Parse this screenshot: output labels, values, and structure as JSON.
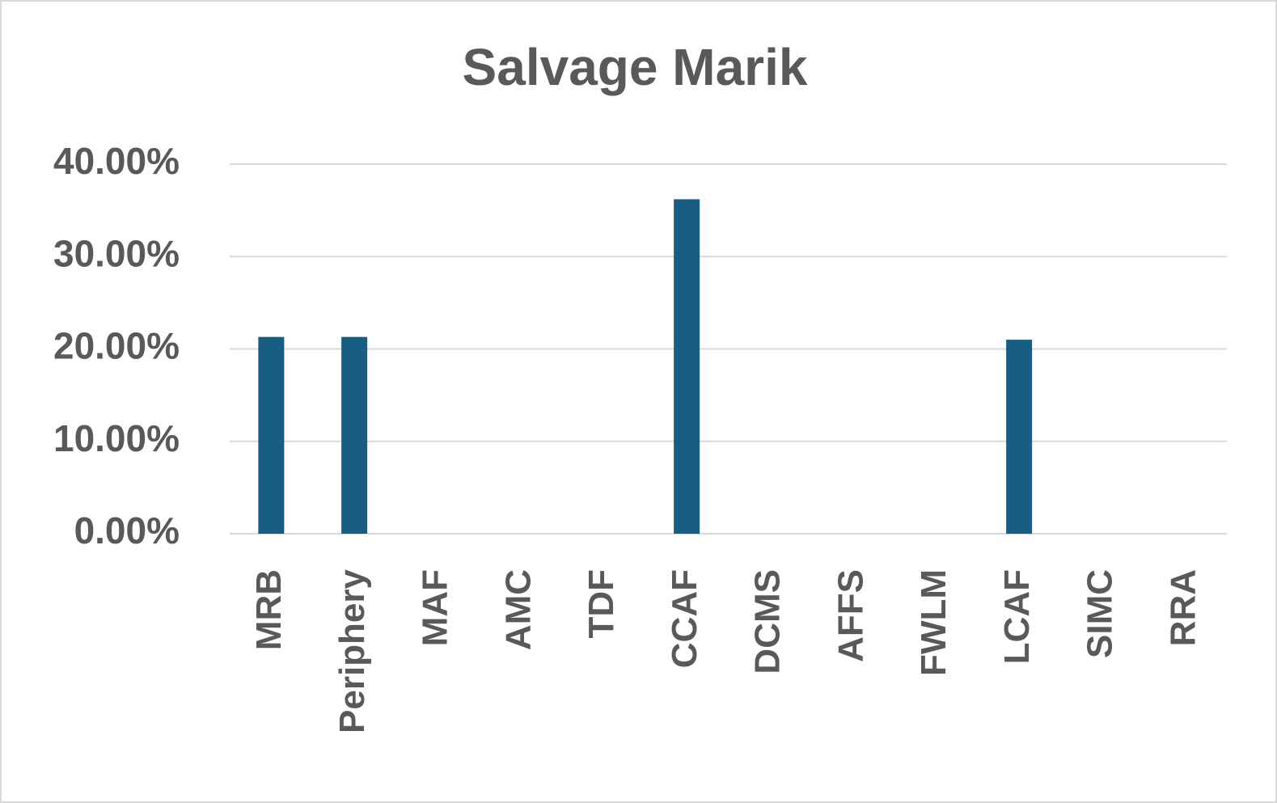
{
  "chart_data": {
    "type": "bar",
    "title": "Salvage Marik",
    "categories": [
      "MRB",
      "Periphery",
      "MAF",
      "AMC",
      "TDF",
      "CCAF",
      "DCMS",
      "AFFS",
      "FWLM",
      "LCAF",
      "SIMC",
      "RRA"
    ],
    "values": [
      21.3,
      21.3,
      0,
      0,
      0,
      36.2,
      0,
      0,
      0,
      21.0,
      0,
      0
    ],
    "color": "#175e82",
    "ylim": [
      0,
      40
    ],
    "yticks": [
      {
        "value": 0,
        "label": "0.00%"
      },
      {
        "value": 10,
        "label": "10.00%"
      },
      {
        "value": 20,
        "label": "20.00%"
      },
      {
        "value": 30,
        "label": "30.00%"
      },
      {
        "value": 40,
        "label": "40.00%"
      }
    ],
    "grid": true
  }
}
